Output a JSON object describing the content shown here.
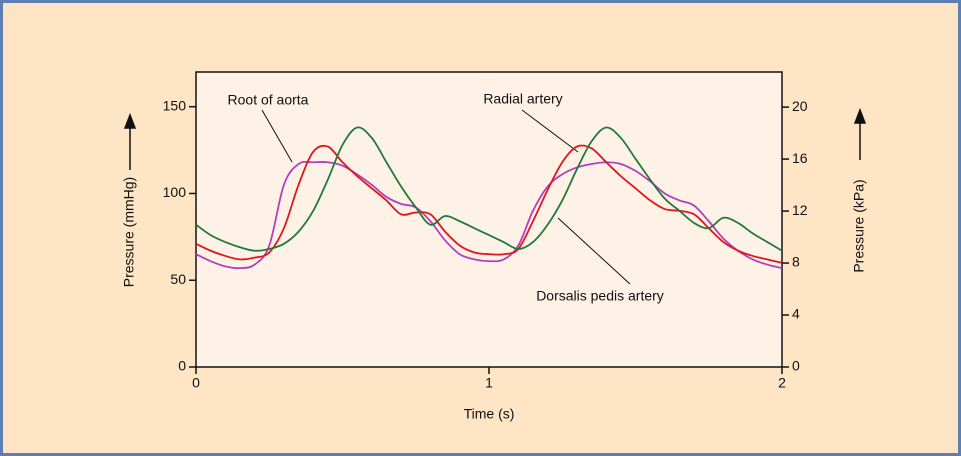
{
  "chart_data": {
    "type": "line",
    "xlabel": "Time (s)",
    "ylabel": "Pressure (mmHg)",
    "y2label": "Pressure (kPa)",
    "annotations": [
      "Root of aorta",
      "Radial artery",
      "Dorsalis pedis artery"
    ],
    "x": [
      0,
      0.05,
      0.1,
      0.15,
      0.2,
      0.25,
      0.3,
      0.35,
      0.4,
      0.45,
      0.5,
      0.55,
      0.6,
      0.65,
      0.7,
      0.75,
      0.8,
      0.85,
      0.9,
      0.95,
      1,
      1.05,
      1.1,
      1.15,
      1.2,
      1.25,
      1.3,
      1.35,
      1.4,
      1.45,
      1.5,
      1.55,
      1.6,
      1.65,
      1.7,
      1.75,
      1.8,
      1.85,
      1.9,
      1.95,
      2
    ],
    "series": [
      {
        "color": "#b23fc0",
        "values": [
          65,
          61,
          58,
          57,
          59,
          70,
          105,
          117,
          118,
          118,
          116,
          111,
          105,
          98,
          94,
          92,
          84,
          73,
          65,
          62,
          61,
          62,
          70,
          90,
          104,
          111,
          115,
          117,
          118,
          117,
          113,
          107,
          100,
          96,
          93,
          84,
          74,
          67,
          62,
          59,
          57
        ]
      },
      {
        "color": "#e0161e",
        "values": [
          71,
          67,
          64,
          62,
          63,
          66,
          80,
          105,
          124,
          127,
          118,
          110,
          103,
          96,
          88,
          89,
          88,
          78,
          70,
          66,
          65,
          65,
          68,
          84,
          102,
          118,
          127,
          126,
          118,
          110,
          103,
          96,
          91,
          90,
          88,
          80,
          72,
          67,
          64,
          62,
          60
        ]
      },
      {
        "color": "#1f7a3c",
        "values": [
          82,
          76,
          72,
          69,
          67,
          68,
          71,
          78,
          90,
          108,
          128,
          138,
          132,
          118,
          104,
          92,
          82,
          87,
          84,
          80,
          76,
          72,
          68,
          72,
          82,
          96,
          114,
          130,
          138,
          132,
          120,
          108,
          97,
          90,
          83,
          80,
          86,
          83,
          77,
          72,
          67
        ]
      }
    ],
    "xlim": [
      0,
      2
    ],
    "xticks": [
      0,
      1,
      2
    ],
    "ylim": [
      0,
      170
    ],
    "yticks": [
      0,
      50,
      100,
      150
    ],
    "y2lim": [
      0,
      22.7
    ],
    "y2ticks": [
      0,
      4,
      8,
      12,
      16,
      20
    ]
  }
}
